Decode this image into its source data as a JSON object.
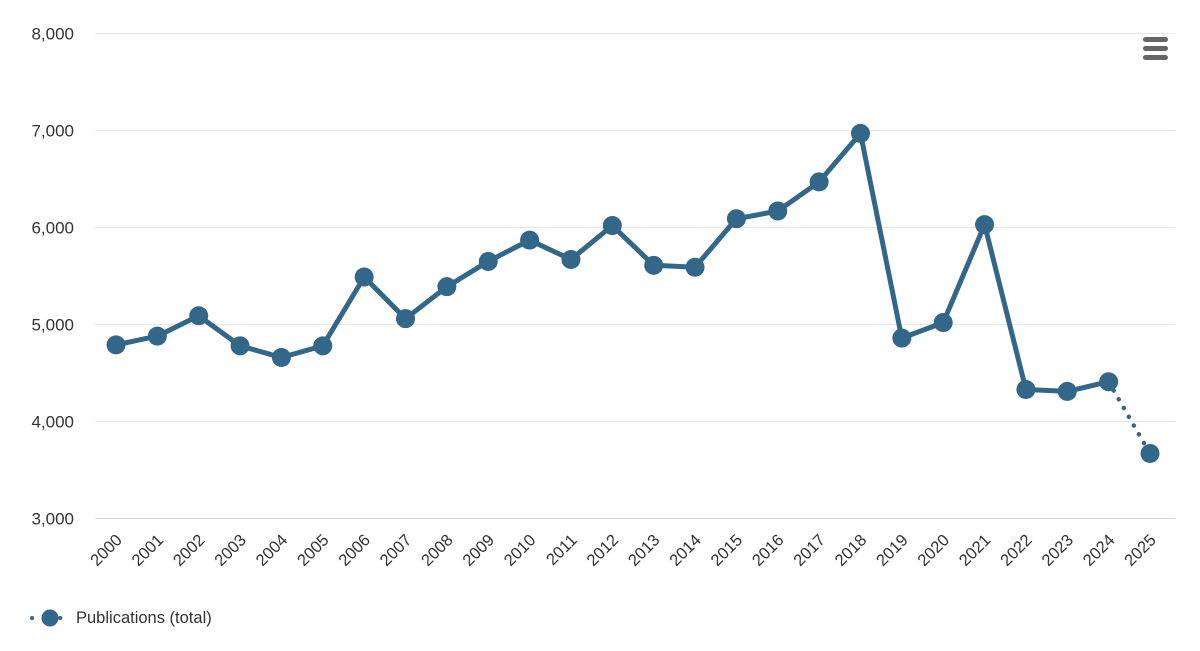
{
  "chart_data": {
    "type": "line",
    "title": "",
    "xlabel": "",
    "ylabel": "",
    "categories": [
      2000,
      2001,
      2002,
      2003,
      2004,
      2005,
      2006,
      2007,
      2008,
      2009,
      2010,
      2011,
      2012,
      2013,
      2014,
      2015,
      2016,
      2017,
      2018,
      2019,
      2020,
      2021,
      2022,
      2023,
      2024,
      2025
    ],
    "series": [
      {
        "name": "Publications (total)",
        "values": [
          4790,
          4880,
          5090,
          4780,
          4660,
          4780,
          5490,
          5060,
          5390,
          5650,
          5870,
          5670,
          6020,
          5610,
          5590,
          6090,
          6170,
          6470,
          6970,
          4860,
          5020,
          6030,
          4330,
          4310,
          4410,
          3670
        ],
        "color": "#336789",
        "marker": "circle",
        "dotted_segment_from_index": 24,
        "dotted_segment_note": "segment 2024 to 2025 drawn as dotted (projection)"
      }
    ],
    "ylim": [
      3000,
      8000
    ],
    "yticks": [
      8000,
      7000,
      6000,
      5000,
      4000,
      3000
    ],
    "ytick_labels": [
      "8,000",
      "7,000",
      "6,000",
      "5,000",
      "4,000",
      "3,000"
    ],
    "xtick_rotation": -45,
    "grid": true,
    "legend_position": "bottom-left"
  },
  "legend": {
    "items": [
      {
        "label": "Publications (total)",
        "color": "#336789"
      }
    ]
  },
  "toolbar": {
    "context_menu_tooltip": "Chart context menu"
  },
  "colors": {
    "series": "#336789",
    "grid_line": "#e6e6e6",
    "axis_line": "#ccd6eb",
    "tick_text": "#333333",
    "menu_icon": "#666666",
    "background": "#ffffff"
  }
}
